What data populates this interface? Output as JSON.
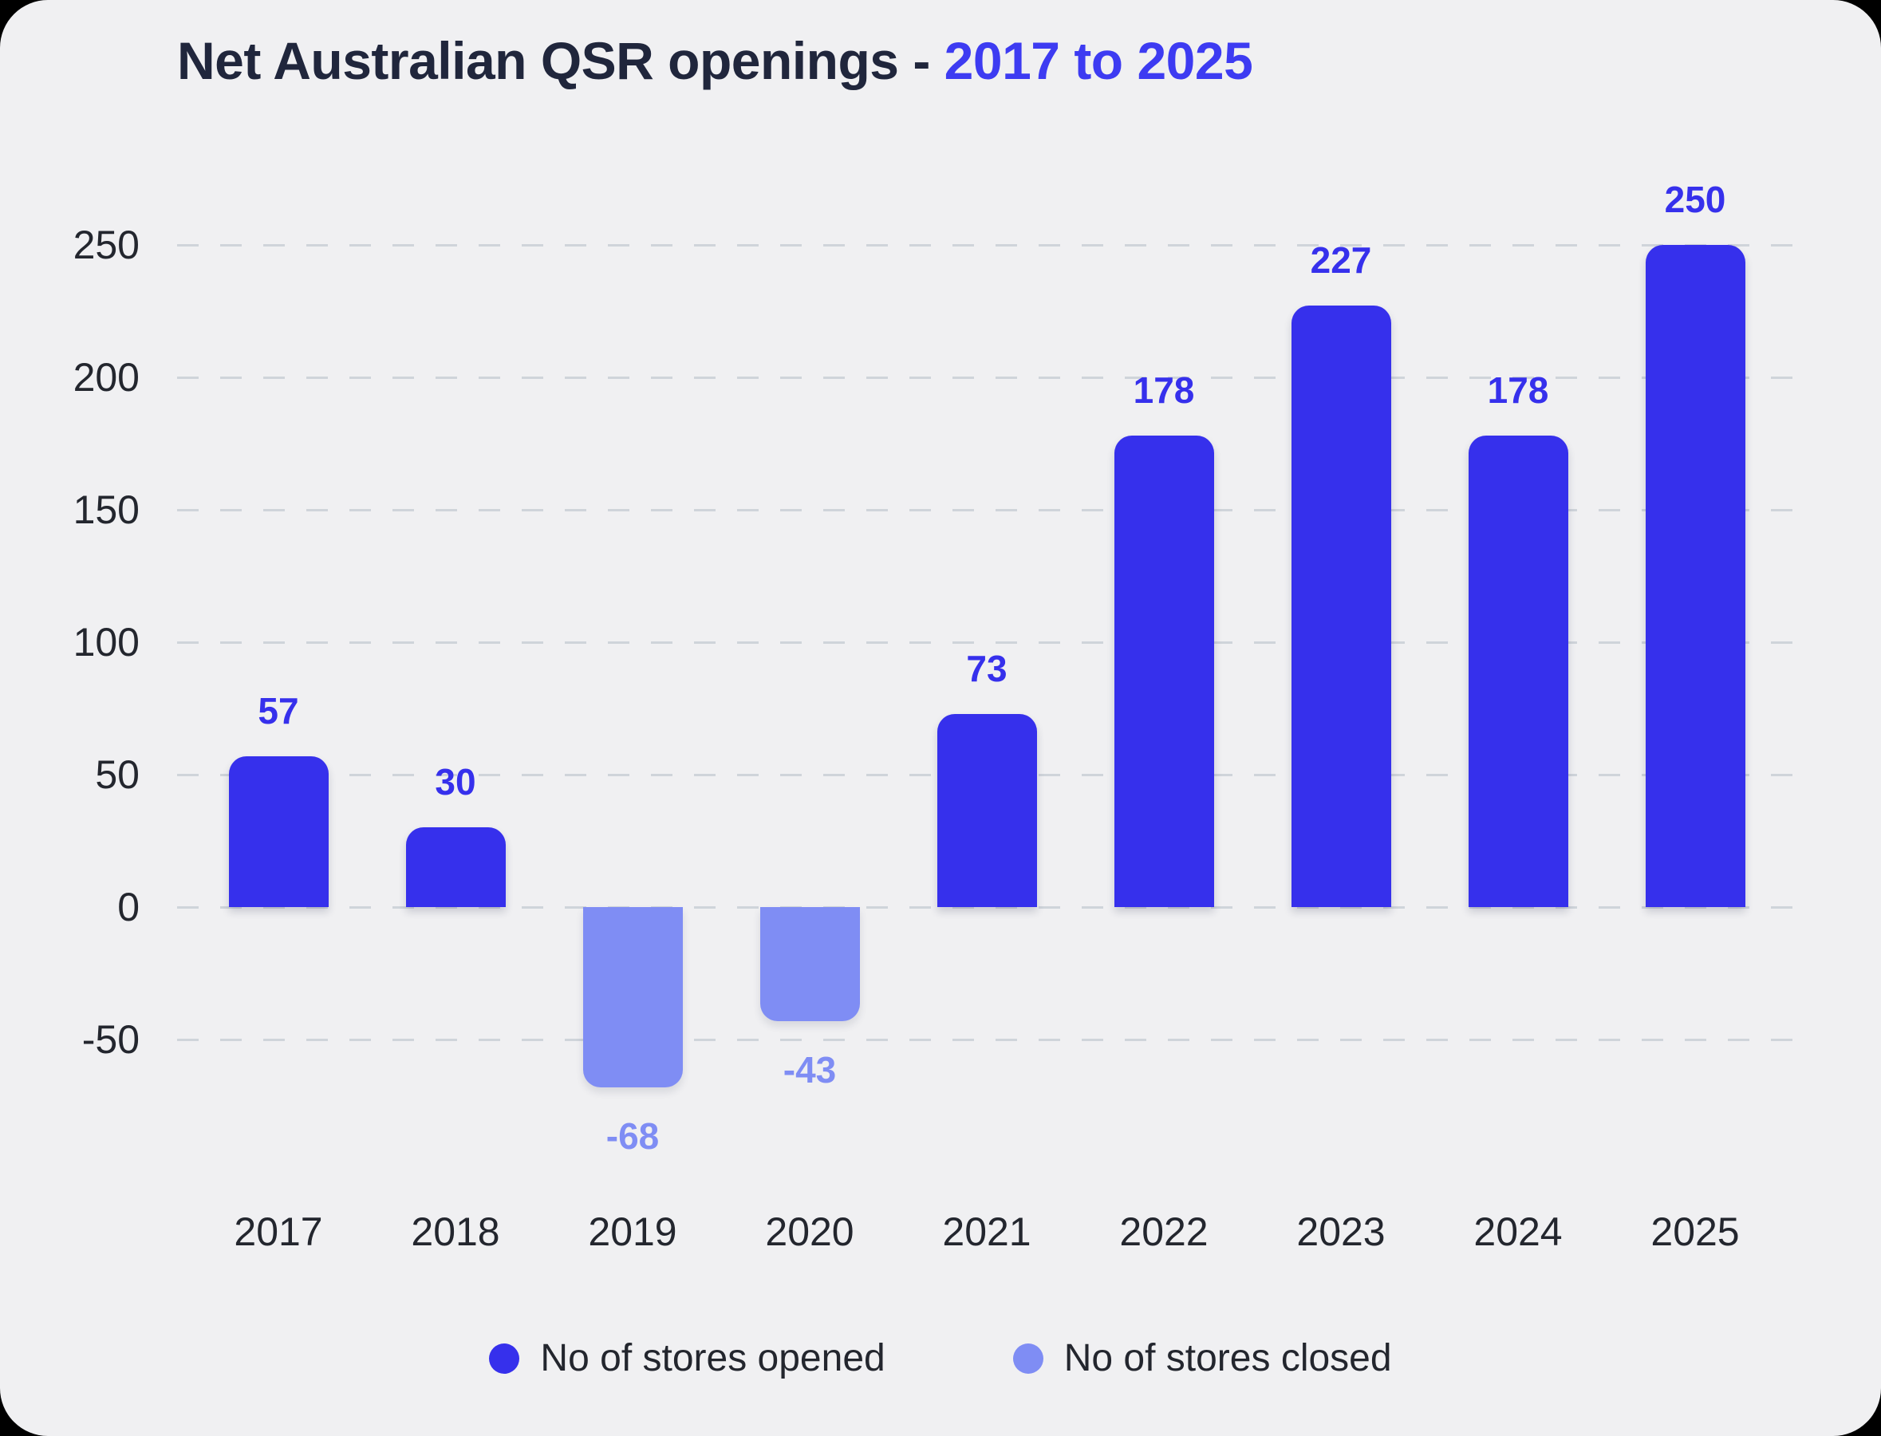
{
  "page": {
    "background": "#000000",
    "card_background": "#f0f0f2"
  },
  "title": {
    "main": "Net Australian QSR openings - ",
    "highlight": "2017 to 2025"
  },
  "colors": {
    "opened": "#3630ec",
    "closed": "#7f8df4",
    "title_text": "#20263c",
    "title_highlight": "#3d3bf2",
    "axis_text": "#23262e",
    "grid": "#cfd4da"
  },
  "chart_data": {
    "type": "bar",
    "title": "Net Australian QSR openings - 2017 to 2025",
    "categories": [
      "2017",
      "2018",
      "2019",
      "2020",
      "2021",
      "2022",
      "2023",
      "2024",
      "2025"
    ],
    "values": [
      57,
      30,
      -68,
      -43,
      73,
      178,
      227,
      178,
      250
    ],
    "y_ticks": [
      250,
      200,
      150,
      100,
      50,
      0,
      -50
    ],
    "ylim": [
      -90,
      280
    ],
    "xlabel": "",
    "ylabel": "",
    "grid": "horizontal-dashed",
    "bar_color_positive": "#3630ec",
    "bar_color_negative": "#7f8df4",
    "value_labels_shown": true,
    "legend_position": "bottom"
  },
  "legend": {
    "items": [
      {
        "label": "No of stores opened",
        "color": "#3630ec"
      },
      {
        "label": "No of stores closed",
        "color": "#7f8df4"
      }
    ]
  }
}
